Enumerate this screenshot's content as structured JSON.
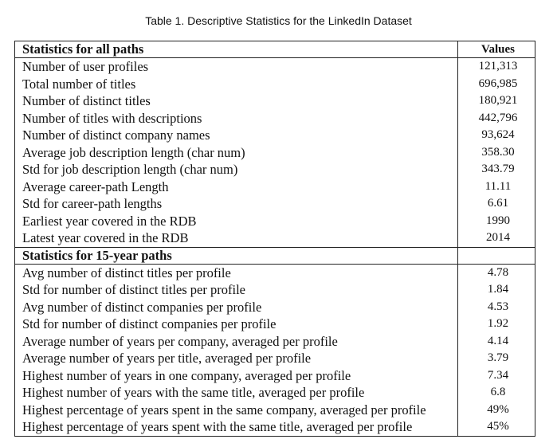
{
  "caption": "Table 1.  Descriptive Statistics for the LinkedIn Dataset",
  "table": {
    "section1": {
      "header": "Statistics for all paths",
      "values_header": "Values",
      "rows": [
        {
          "label": "Number of user profiles",
          "value": "121,313"
        },
        {
          "label": "Total number of titles",
          "value": "696,985"
        },
        {
          "label": "Number of distinct titles",
          "value": "180,921"
        },
        {
          "label": "Number of titles with descriptions",
          "value": "442,796"
        },
        {
          "label": "Number of distinct company names",
          "value": "93,624"
        },
        {
          "label": "Average job description length (char num)",
          "value": "358.30"
        },
        {
          "label": "Std for job description length (char num)",
          "value": "343.79"
        },
        {
          "label": "Average career-path Length",
          "value": "11.11"
        },
        {
          "label": "Std for career-path lengths",
          "value": "6.61"
        },
        {
          "label": "Earliest year covered in the RDB",
          "value": "1990"
        },
        {
          "label": "Latest year covered in the RDB",
          "value": "2014"
        }
      ]
    },
    "section2": {
      "header": "Statistics for 15-year paths",
      "rows": [
        {
          "label": "Avg number of distinct titles per profile",
          "value": "4.78"
        },
        {
          "label": "Std for number of distinct titles per profile",
          "value": "1.84"
        },
        {
          "label": "Avg number of distinct companies per profile",
          "value": "4.53"
        },
        {
          "label": "Std for number of distinct companies per profile",
          "value": "1.92"
        },
        {
          "label": "Average number of years per company, averaged per profile",
          "value": "4.14"
        },
        {
          "label": "Average number of years per title, averaged per profile",
          "value": "3.79"
        },
        {
          "label": "Highest number of years in one company, averaged per profile",
          "value": "7.34"
        },
        {
          "label": "Highest number of years with the same title, averaged per profile",
          "value": "6.8"
        },
        {
          "label": "Highest percentage of years spent in the same company, averaged per profile",
          "value": "49%"
        },
        {
          "label": "Highest percentage of years spent with the same title, averaged per profile",
          "value": "45%"
        }
      ]
    }
  }
}
